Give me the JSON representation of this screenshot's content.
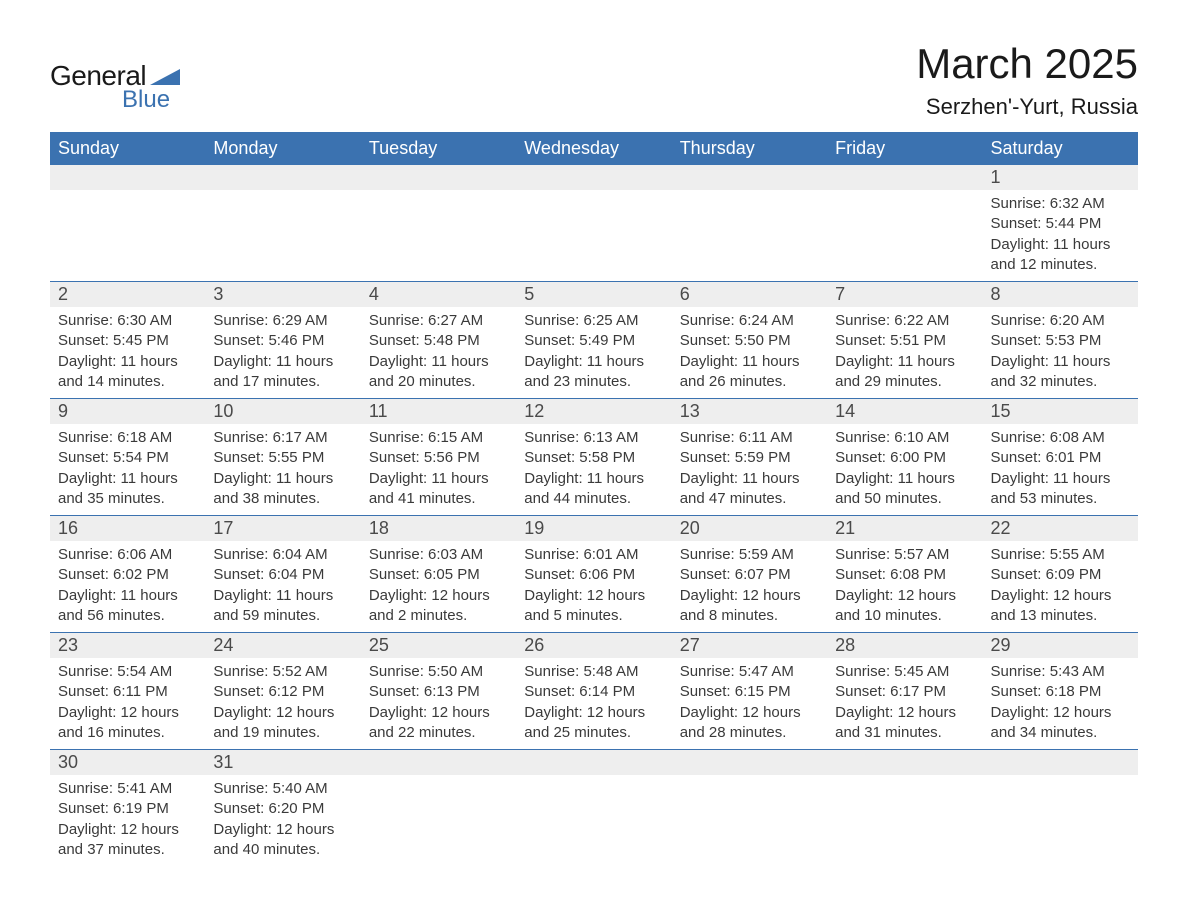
{
  "logo": {
    "word1": "General",
    "word2": "Blue",
    "accent_color": "#3b72b0",
    "text_color": "#1a1a1a"
  },
  "title": {
    "month": "March 2025",
    "location": "Serzhen'-Yurt, Russia"
  },
  "colors": {
    "header_bg": "#3b72b0",
    "header_text": "#ffffff",
    "daynum_bg": "#eeeeee",
    "daynum_text": "#4a4a4a",
    "cell_text": "#3a3a3a",
    "row_divider": "#3b72b0",
    "page_bg": "#ffffff"
  },
  "typography": {
    "month_title_fontsize": 42,
    "location_fontsize": 22,
    "weekday_fontsize": 18,
    "daynum_fontsize": 18,
    "detail_fontsize": 15
  },
  "weekdays": [
    "Sunday",
    "Monday",
    "Tuesday",
    "Wednesday",
    "Thursday",
    "Friday",
    "Saturday"
  ],
  "labels": {
    "sunrise": "Sunrise:",
    "sunset": "Sunset:",
    "daylight": "Daylight:"
  },
  "weeks": [
    [
      null,
      null,
      null,
      null,
      null,
      null,
      {
        "n": "1",
        "sunrise": "6:32 AM",
        "sunset": "5:44 PM",
        "daylight": "11 hours and 12 minutes."
      }
    ],
    [
      {
        "n": "2",
        "sunrise": "6:30 AM",
        "sunset": "5:45 PM",
        "daylight": "11 hours and 14 minutes."
      },
      {
        "n": "3",
        "sunrise": "6:29 AM",
        "sunset": "5:46 PM",
        "daylight": "11 hours and 17 minutes."
      },
      {
        "n": "4",
        "sunrise": "6:27 AM",
        "sunset": "5:48 PM",
        "daylight": "11 hours and 20 minutes."
      },
      {
        "n": "5",
        "sunrise": "6:25 AM",
        "sunset": "5:49 PM",
        "daylight": "11 hours and 23 minutes."
      },
      {
        "n": "6",
        "sunrise": "6:24 AM",
        "sunset": "5:50 PM",
        "daylight": "11 hours and 26 minutes."
      },
      {
        "n": "7",
        "sunrise": "6:22 AM",
        "sunset": "5:51 PM",
        "daylight": "11 hours and 29 minutes."
      },
      {
        "n": "8",
        "sunrise": "6:20 AM",
        "sunset": "5:53 PM",
        "daylight": "11 hours and 32 minutes."
      }
    ],
    [
      {
        "n": "9",
        "sunrise": "6:18 AM",
        "sunset": "5:54 PM",
        "daylight": "11 hours and 35 minutes."
      },
      {
        "n": "10",
        "sunrise": "6:17 AM",
        "sunset": "5:55 PM",
        "daylight": "11 hours and 38 minutes."
      },
      {
        "n": "11",
        "sunrise": "6:15 AM",
        "sunset": "5:56 PM",
        "daylight": "11 hours and 41 minutes."
      },
      {
        "n": "12",
        "sunrise": "6:13 AM",
        "sunset": "5:58 PM",
        "daylight": "11 hours and 44 minutes."
      },
      {
        "n": "13",
        "sunrise": "6:11 AM",
        "sunset": "5:59 PM",
        "daylight": "11 hours and 47 minutes."
      },
      {
        "n": "14",
        "sunrise": "6:10 AM",
        "sunset": "6:00 PM",
        "daylight": "11 hours and 50 minutes."
      },
      {
        "n": "15",
        "sunrise": "6:08 AM",
        "sunset": "6:01 PM",
        "daylight": "11 hours and 53 minutes."
      }
    ],
    [
      {
        "n": "16",
        "sunrise": "6:06 AM",
        "sunset": "6:02 PM",
        "daylight": "11 hours and 56 minutes."
      },
      {
        "n": "17",
        "sunrise": "6:04 AM",
        "sunset": "6:04 PM",
        "daylight": "11 hours and 59 minutes."
      },
      {
        "n": "18",
        "sunrise": "6:03 AM",
        "sunset": "6:05 PM",
        "daylight": "12 hours and 2 minutes."
      },
      {
        "n": "19",
        "sunrise": "6:01 AM",
        "sunset": "6:06 PM",
        "daylight": "12 hours and 5 minutes."
      },
      {
        "n": "20",
        "sunrise": "5:59 AM",
        "sunset": "6:07 PM",
        "daylight": "12 hours and 8 minutes."
      },
      {
        "n": "21",
        "sunrise": "5:57 AM",
        "sunset": "6:08 PM",
        "daylight": "12 hours and 10 minutes."
      },
      {
        "n": "22",
        "sunrise": "5:55 AM",
        "sunset": "6:09 PM",
        "daylight": "12 hours and 13 minutes."
      }
    ],
    [
      {
        "n": "23",
        "sunrise": "5:54 AM",
        "sunset": "6:11 PM",
        "daylight": "12 hours and 16 minutes."
      },
      {
        "n": "24",
        "sunrise": "5:52 AM",
        "sunset": "6:12 PM",
        "daylight": "12 hours and 19 minutes."
      },
      {
        "n": "25",
        "sunrise": "5:50 AM",
        "sunset": "6:13 PM",
        "daylight": "12 hours and 22 minutes."
      },
      {
        "n": "26",
        "sunrise": "5:48 AM",
        "sunset": "6:14 PM",
        "daylight": "12 hours and 25 minutes."
      },
      {
        "n": "27",
        "sunrise": "5:47 AM",
        "sunset": "6:15 PM",
        "daylight": "12 hours and 28 minutes."
      },
      {
        "n": "28",
        "sunrise": "5:45 AM",
        "sunset": "6:17 PM",
        "daylight": "12 hours and 31 minutes."
      },
      {
        "n": "29",
        "sunrise": "5:43 AM",
        "sunset": "6:18 PM",
        "daylight": "12 hours and 34 minutes."
      }
    ],
    [
      {
        "n": "30",
        "sunrise": "5:41 AM",
        "sunset": "6:19 PM",
        "daylight": "12 hours and 37 minutes."
      },
      {
        "n": "31",
        "sunrise": "5:40 AM",
        "sunset": "6:20 PM",
        "daylight": "12 hours and 40 minutes."
      },
      null,
      null,
      null,
      null,
      null
    ]
  ]
}
